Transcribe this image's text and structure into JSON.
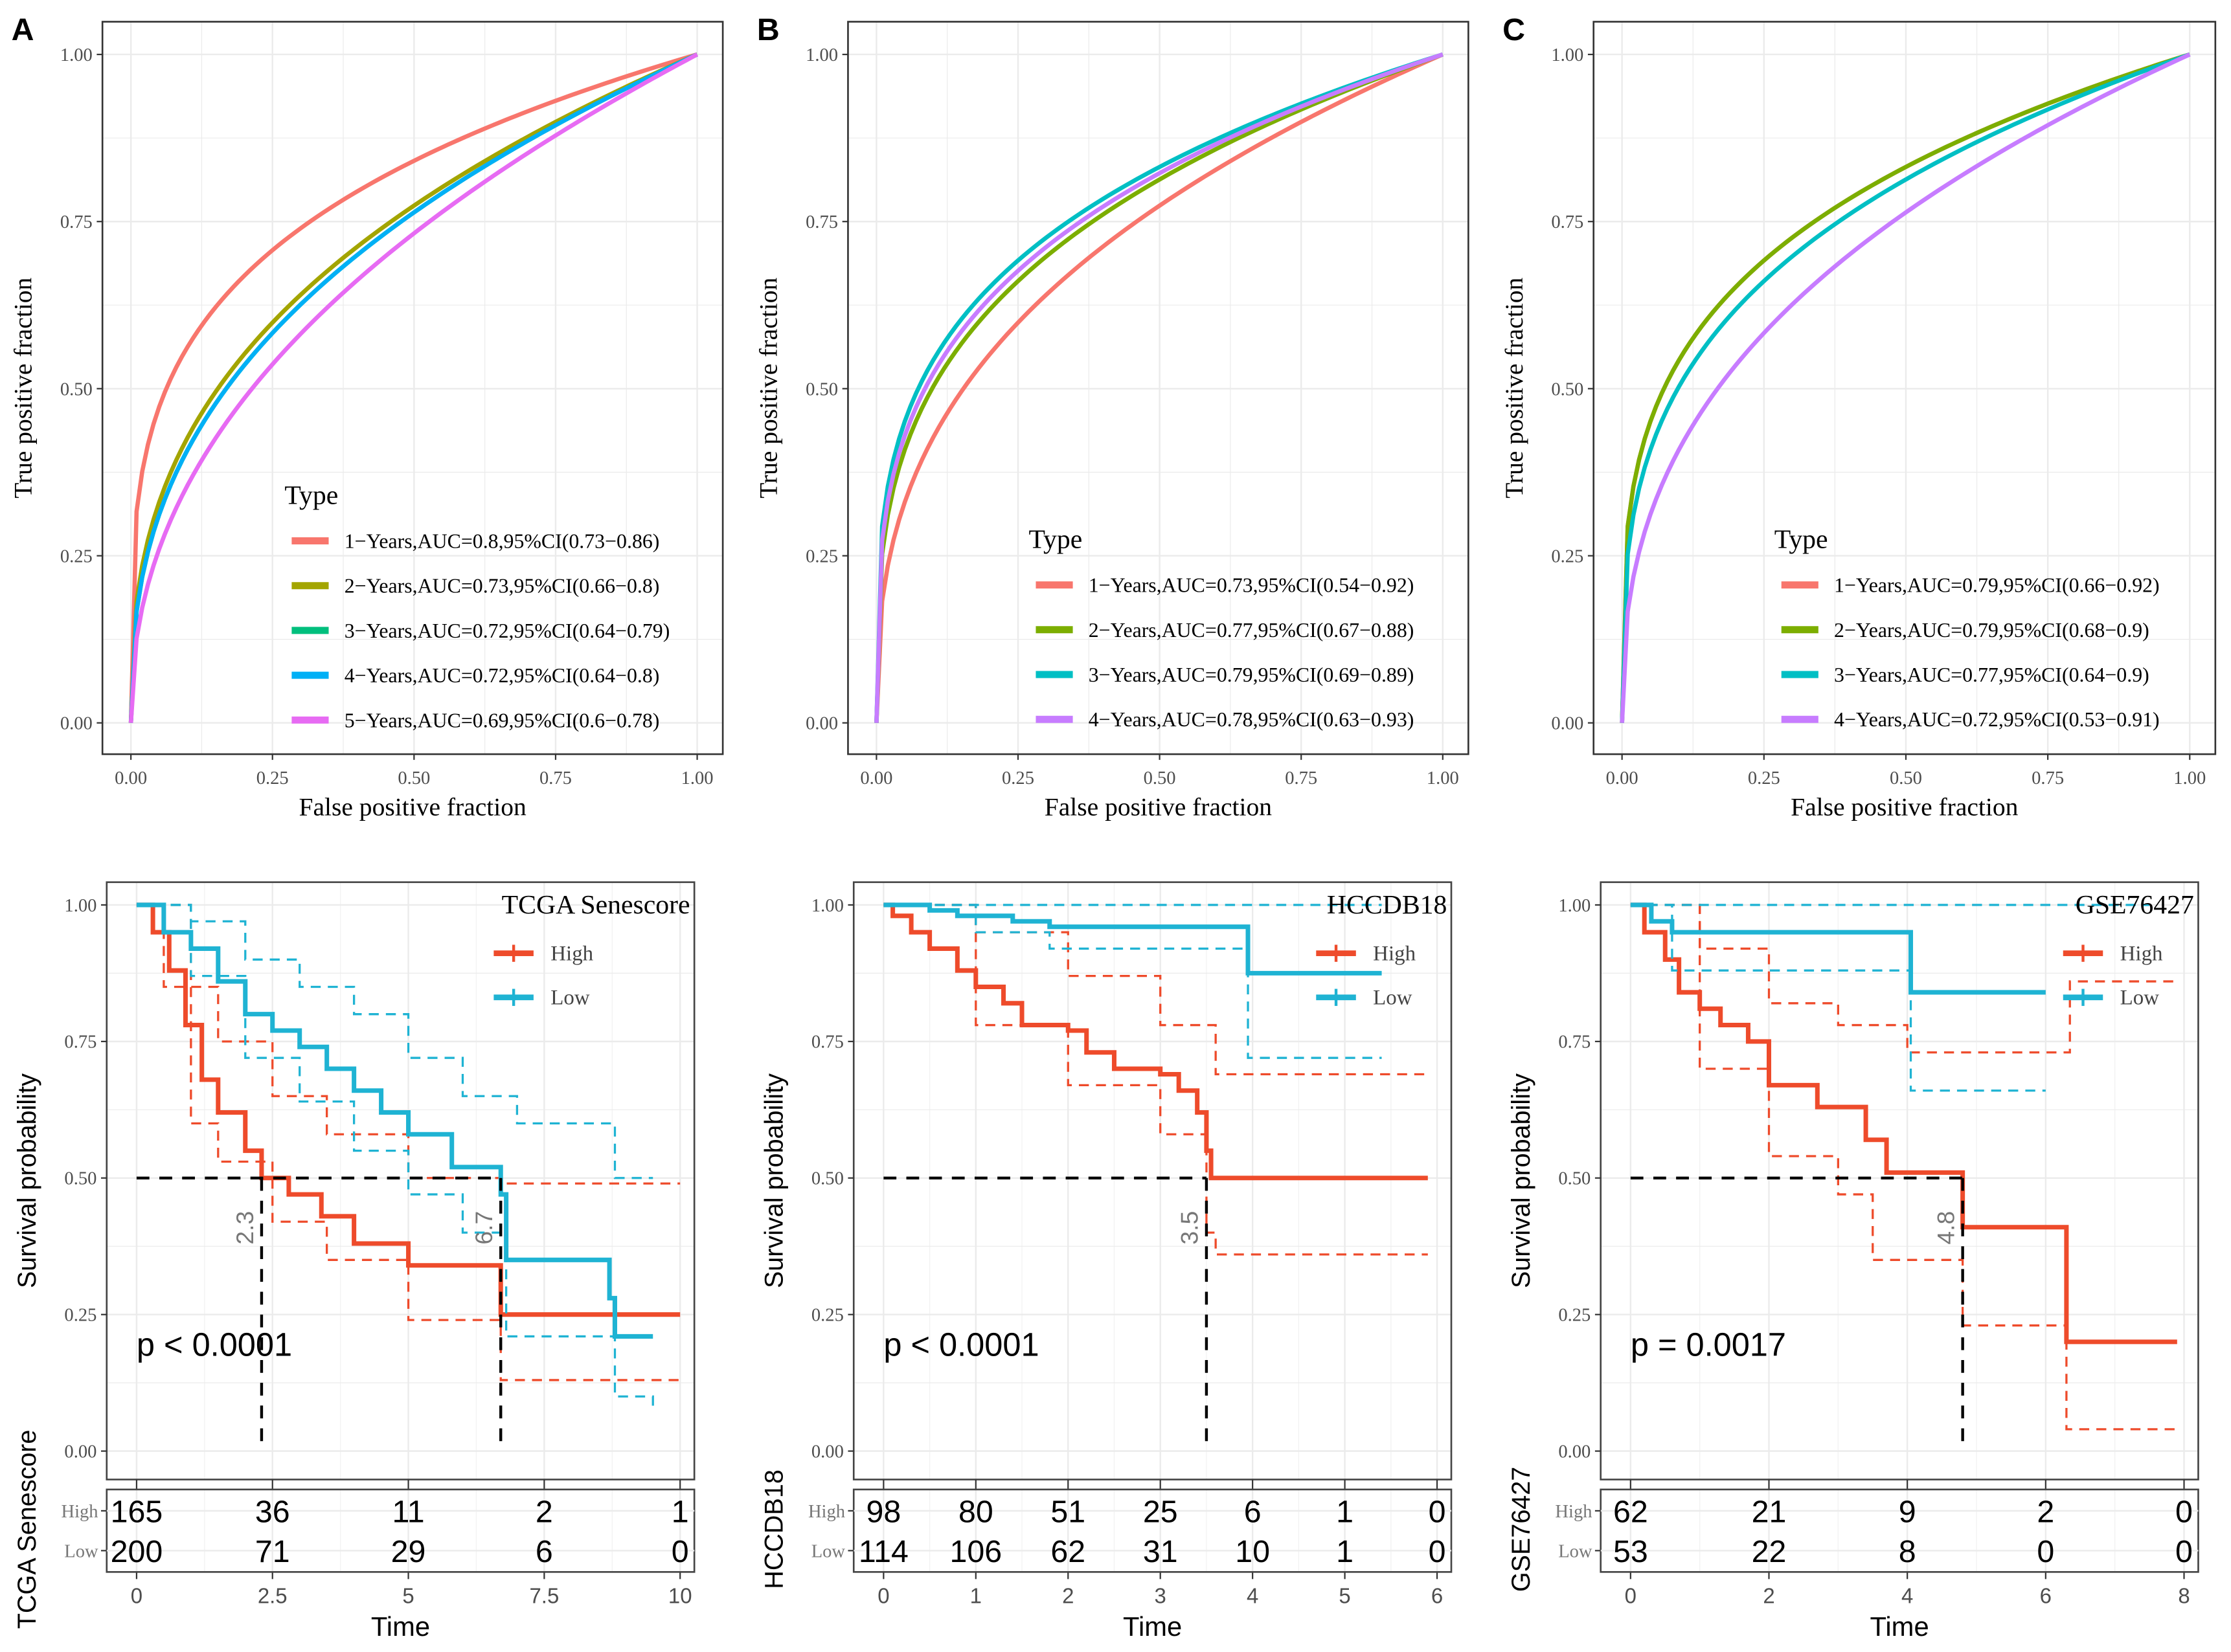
{
  "chart_data": [
    {
      "type": "line",
      "panel_label": "A",
      "xlabel": "False positive fraction",
      "ylabel": "True positive fraction",
      "xlim": [
        0,
        1
      ],
      "ylim": [
        0,
        1
      ],
      "tick_values": [
        0,
        0.25,
        0.5,
        0.75,
        1
      ],
      "tick_labels": [
        "0.00",
        "0.25",
        "0.50",
        "0.75",
        "1.00"
      ],
      "legend_title": "Type",
      "legend_placement": "bottom-right",
      "grid": true,
      "series": [
        {
          "name": "1−Years,AUC=0.8,95%CI(0.73−0.86)",
          "auc": 0.8,
          "color": "#F8766D"
        },
        {
          "name": "2−Years,AUC=0.73,95%CI(0.66−0.8)",
          "auc": 0.73,
          "color": "#A3A500"
        },
        {
          "name": "3−Years,AUC=0.72,95%CI(0.64−0.79)",
          "auc": 0.72,
          "color": "#00BF7D"
        },
        {
          "name": "4−Years,AUC=0.72,95%CI(0.64−0.8)",
          "auc": 0.72,
          "color": "#00B0F6"
        },
        {
          "name": "5−Years,AUC=0.69,95%CI(0.6−0.78)",
          "auc": 0.69,
          "color": "#E76BF3"
        }
      ]
    },
    {
      "type": "line",
      "panel_label": "B",
      "xlabel": "False positive fraction",
      "ylabel": "True positive fraction",
      "xlim": [
        0,
        1
      ],
      "ylim": [
        0,
        1
      ],
      "tick_values": [
        0,
        0.25,
        0.5,
        0.75,
        1
      ],
      "tick_labels": [
        "0.00",
        "0.25",
        "0.50",
        "0.75",
        "1.00"
      ],
      "legend_title": "Type",
      "legend_placement": "bottom-right",
      "grid": true,
      "series": [
        {
          "name": "1−Years,AUC=0.73,95%CI(0.54−0.92)",
          "auc": 0.73,
          "color": "#F8766D"
        },
        {
          "name": "2−Years,AUC=0.77,95%CI(0.67−0.88)",
          "auc": 0.77,
          "color": "#7CAE00"
        },
        {
          "name": "3−Years,AUC=0.79,95%CI(0.69−0.89)",
          "auc": 0.79,
          "color": "#00BFC4"
        },
        {
          "name": "4−Years,AUC=0.78,95%CI(0.63−0.93)",
          "auc": 0.78,
          "color": "#C77CFF"
        }
      ]
    },
    {
      "type": "line",
      "panel_label": "C",
      "xlabel": "False positive fraction",
      "ylabel": "True positive fraction",
      "xlim": [
        0,
        1
      ],
      "ylim": [
        0,
        1
      ],
      "tick_values": [
        0,
        0.25,
        0.5,
        0.75,
        1
      ],
      "tick_labels": [
        "0.00",
        "0.25",
        "0.50",
        "0.75",
        "1.00"
      ],
      "legend_title": "Type",
      "legend_placement": "bottom-right",
      "grid": true,
      "series": [
        {
          "name": "1−Years,AUC=0.79,95%CI(0.66−0.92)",
          "auc": 0.79,
          "color": "#F8766D"
        },
        {
          "name": "2−Years,AUC=0.79,95%CI(0.68−0.9)",
          "auc": 0.79,
          "color": "#7CAE00"
        },
        {
          "name": "3−Years,AUC=0.77,95%CI(0.64−0.9)",
          "auc": 0.77,
          "color": "#00BFC4"
        },
        {
          "name": "4−Years,AUC=0.72,95%CI(0.53−0.91)",
          "auc": 0.72,
          "color": "#C77CFF"
        }
      ]
    },
    {
      "type": "line",
      "title": "TCGA Senescore",
      "xlabel": "Time",
      "ylabel": "Survival probability",
      "xlim": [
        0,
        10
      ],
      "ylim": [
        0,
        1
      ],
      "xticks": [
        0,
        2.5,
        5,
        7.5,
        10
      ],
      "xtick_labels": [
        "0",
        "2.5",
        "5",
        "7.5",
        "10"
      ],
      "yticks": [
        0,
        0.25,
        0.5,
        0.75,
        1
      ],
      "ytick_labels": [
        "0.00",
        "0.25",
        "0.50",
        "0.75",
        "1.00"
      ],
      "pvalue": "p < 0.0001",
      "medians": [
        {
          "value": 2.3,
          "label": "2.3"
        },
        {
          "value": 6.7,
          "label": "6.7"
        }
      ],
      "series": [
        {
          "name": "High",
          "color": "#EE4B2B",
          "points": [
            [
              0,
              1
            ],
            [
              0.3,
              0.95
            ],
            [
              0.6,
              0.88
            ],
            [
              0.9,
              0.78
            ],
            [
              1.2,
              0.68
            ],
            [
              1.5,
              0.62
            ],
            [
              2.0,
              0.55
            ],
            [
              2.3,
              0.5
            ],
            [
              2.8,
              0.47
            ],
            [
              3.4,
              0.43
            ],
            [
              4.0,
              0.38
            ],
            [
              5.0,
              0.34
            ],
            [
              6.7,
              0.25
            ],
            [
              10,
              0.25
            ]
          ],
          "ci_upper": [
            [
              0,
              1
            ],
            [
              1,
              0.85
            ],
            [
              1.5,
              0.75
            ],
            [
              2.5,
              0.65
            ],
            [
              3.5,
              0.58
            ],
            [
              5,
              0.5
            ],
            [
              6.7,
              0.49
            ],
            [
              10,
              0.49
            ]
          ],
          "ci_lower": [
            [
              0,
              1
            ],
            [
              0.5,
              0.85
            ],
            [
              1,
              0.6
            ],
            [
              1.5,
              0.53
            ],
            [
              2.5,
              0.42
            ],
            [
              3.5,
              0.35
            ],
            [
              5,
              0.24
            ],
            [
              6.7,
              0.13
            ],
            [
              10,
              0.13
            ]
          ]
        },
        {
          "name": "Low",
          "color": "#1FB3D3",
          "points": [
            [
              0,
              1
            ],
            [
              0.5,
              0.95
            ],
            [
              1,
              0.92
            ],
            [
              1.5,
              0.86
            ],
            [
              2,
              0.8
            ],
            [
              2.5,
              0.77
            ],
            [
              3,
              0.74
            ],
            [
              3.5,
              0.7
            ],
            [
              4,
              0.66
            ],
            [
              4.5,
              0.62
            ],
            [
              5,
              0.58
            ],
            [
              5.8,
              0.52
            ],
            [
              6.7,
              0.47
            ],
            [
              6.8,
              0.35
            ],
            [
              8.7,
              0.28
            ],
            [
              8.8,
              0.21
            ],
            [
              9.5,
              0.21
            ]
          ],
          "ci_upper": [
            [
              0,
              1
            ],
            [
              1,
              0.97
            ],
            [
              2,
              0.9
            ],
            [
              3,
              0.85
            ],
            [
              4,
              0.8
            ],
            [
              5,
              0.72
            ],
            [
              6,
              0.65
            ],
            [
              7,
              0.6
            ],
            [
              8.8,
              0.5
            ],
            [
              9.5,
              0.5
            ]
          ],
          "ci_lower": [
            [
              0,
              1
            ],
            [
              1,
              0.87
            ],
            [
              2,
              0.72
            ],
            [
              3,
              0.64
            ],
            [
              4,
              0.55
            ],
            [
              5,
              0.47
            ],
            [
              6,
              0.4
            ],
            [
              6.8,
              0.21
            ],
            [
              8.8,
              0.1
            ],
            [
              9.5,
              0.08
            ]
          ]
        }
      ],
      "risk_table": {
        "ylabel": "TCGA Senescore",
        "rows": [
          {
            "name": "High",
            "counts": [
              "165",
              "36",
              "11",
              "2",
              "1"
            ]
          },
          {
            "name": "Low",
            "counts": [
              "200",
              "71",
              "29",
              "6",
              "0"
            ]
          }
        ]
      }
    },
    {
      "type": "line",
      "title": "HCCDB18",
      "xlabel": "Time",
      "ylabel": "Survival probability",
      "xlim": [
        0,
        6
      ],
      "ylim": [
        0,
        1
      ],
      "xticks": [
        0,
        1,
        2,
        3,
        4,
        5,
        6
      ],
      "xtick_labels": [
        "0",
        "1",
        "2",
        "3",
        "4",
        "5",
        "6"
      ],
      "yticks": [
        0,
        0.25,
        0.5,
        0.75,
        1
      ],
      "ytick_labels": [
        "0.00",
        "0.25",
        "0.50",
        "0.75",
        "1.00"
      ],
      "pvalue": "p < 0.0001",
      "medians": [
        {
          "value": 3.5,
          "label": "3.5"
        }
      ],
      "series": [
        {
          "name": "High",
          "color": "#EE4B2B",
          "points": [
            [
              0,
              1
            ],
            [
              0.1,
              0.98
            ],
            [
              0.3,
              0.95
            ],
            [
              0.5,
              0.92
            ],
            [
              0.8,
              0.88
            ],
            [
              1.0,
              0.85
            ],
            [
              1.3,
              0.82
            ],
            [
              1.5,
              0.78
            ],
            [
              2.0,
              0.77
            ],
            [
              2.2,
              0.73
            ],
            [
              2.5,
              0.7
            ],
            [
              3.0,
              0.69
            ],
            [
              3.2,
              0.66
            ],
            [
              3.4,
              0.62
            ],
            [
              3.5,
              0.55
            ],
            [
              3.55,
              0.5
            ],
            [
              5.9,
              0.5
            ]
          ],
          "ci_upper": [
            [
              0,
              1
            ],
            [
              1,
              0.95
            ],
            [
              2,
              0.87
            ],
            [
              3,
              0.78
            ],
            [
              3.6,
              0.69
            ],
            [
              5.9,
              0.69
            ]
          ],
          "ci_lower": [
            [
              0,
              1
            ],
            [
              1,
              0.78
            ],
            [
              2,
              0.67
            ],
            [
              3,
              0.58
            ],
            [
              3.5,
              0.4
            ],
            [
              3.6,
              0.36
            ],
            [
              5.9,
              0.36
            ]
          ]
        },
        {
          "name": "Low",
          "color": "#1FB3D3",
          "points": [
            [
              0,
              1
            ],
            [
              0.5,
              0.99
            ],
            [
              0.8,
              0.98
            ],
            [
              1.4,
              0.97
            ],
            [
              1.8,
              0.96
            ],
            [
              3.95,
              0.875
            ],
            [
              5.4,
              0.875
            ]
          ],
          "ci_upper": [
            [
              0,
              1
            ],
            [
              5.4,
              1
            ]
          ],
          "ci_lower": [
            [
              0,
              1
            ],
            [
              1,
              0.95
            ],
            [
              1.8,
              0.92
            ],
            [
              3.95,
              0.72
            ],
            [
              5.4,
              0.72
            ]
          ]
        }
      ],
      "risk_table": {
        "ylabel": "HCCDB18",
        "rows": [
          {
            "name": "High",
            "counts": [
              "98",
              "80",
              "51",
              "25",
              "6",
              "1",
              "0"
            ]
          },
          {
            "name": "Low",
            "counts": [
              "114",
              "106",
              "62",
              "31",
              "10",
              "1",
              "0"
            ]
          }
        ]
      }
    },
    {
      "type": "line",
      "title": "GSE76427",
      "xlabel": "Time",
      "ylabel": "Survival probability",
      "xlim": [
        0,
        8
      ],
      "ylim": [
        0,
        1
      ],
      "xticks": [
        0,
        2,
        4,
        6,
        8
      ],
      "xtick_labels": [
        "0",
        "2",
        "4",
        "6",
        "8"
      ],
      "yticks": [
        0,
        0.25,
        0.5,
        0.75,
        1
      ],
      "ytick_labels": [
        "0.00",
        "0.25",
        "0.50",
        "0.75",
        "1.00"
      ],
      "pvalue": "p = 0.0017",
      "medians": [
        {
          "value": 4.8,
          "label": "4.8"
        }
      ],
      "series": [
        {
          "name": "High",
          "color": "#EE4B2B",
          "points": [
            [
              0,
              1
            ],
            [
              0.2,
              0.95
            ],
            [
              0.5,
              0.9
            ],
            [
              0.7,
              0.84
            ],
            [
              1.0,
              0.81
            ],
            [
              1.3,
              0.78
            ],
            [
              1.7,
              0.75
            ],
            [
              2.0,
              0.67
            ],
            [
              2.7,
              0.63
            ],
            [
              3.4,
              0.57
            ],
            [
              3.7,
              0.51
            ],
            [
              4.8,
              0.41
            ],
            [
              6.3,
              0.2
            ],
            [
              7.9,
              0.2
            ]
          ],
          "ci_upper": [
            [
              0,
              1
            ],
            [
              1,
              0.92
            ],
            [
              2,
              0.82
            ],
            [
              3,
              0.78
            ],
            [
              4,
              0.73
            ],
            [
              6.3,
              0.73
            ],
            [
              6.35,
              0.86
            ],
            [
              7.9,
              0.86
            ]
          ],
          "ci_lower": [
            [
              0,
              1
            ],
            [
              1,
              0.7
            ],
            [
              2,
              0.54
            ],
            [
              3,
              0.47
            ],
            [
              3.5,
              0.35
            ],
            [
              4.8,
              0.23
            ],
            [
              6.3,
              0.04
            ],
            [
              7.9,
              0.04
            ]
          ]
        },
        {
          "name": "Low",
          "color": "#1FB3D3",
          "points": [
            [
              0,
              1
            ],
            [
              0.3,
              0.97
            ],
            [
              0.6,
              0.95
            ],
            [
              4.05,
              0.84
            ],
            [
              6.0,
              0.84
            ]
          ],
          "ci_upper": [
            [
              0,
              1
            ],
            [
              7.5,
              1
            ]
          ],
          "ci_lower": [
            [
              0,
              1
            ],
            [
              0.6,
              0.88
            ],
            [
              4.05,
              0.66
            ],
            [
              6,
              0.66
            ]
          ]
        }
      ],
      "risk_table": {
        "ylabel": "GSE76427",
        "rows": [
          {
            "name": "High",
            "counts": [
              "62",
              "21",
              "9",
              "2",
              "0"
            ]
          },
          {
            "name": "Low",
            "counts": [
              "53",
              "22",
              "8",
              "0",
              "0"
            ]
          }
        ]
      }
    }
  ]
}
